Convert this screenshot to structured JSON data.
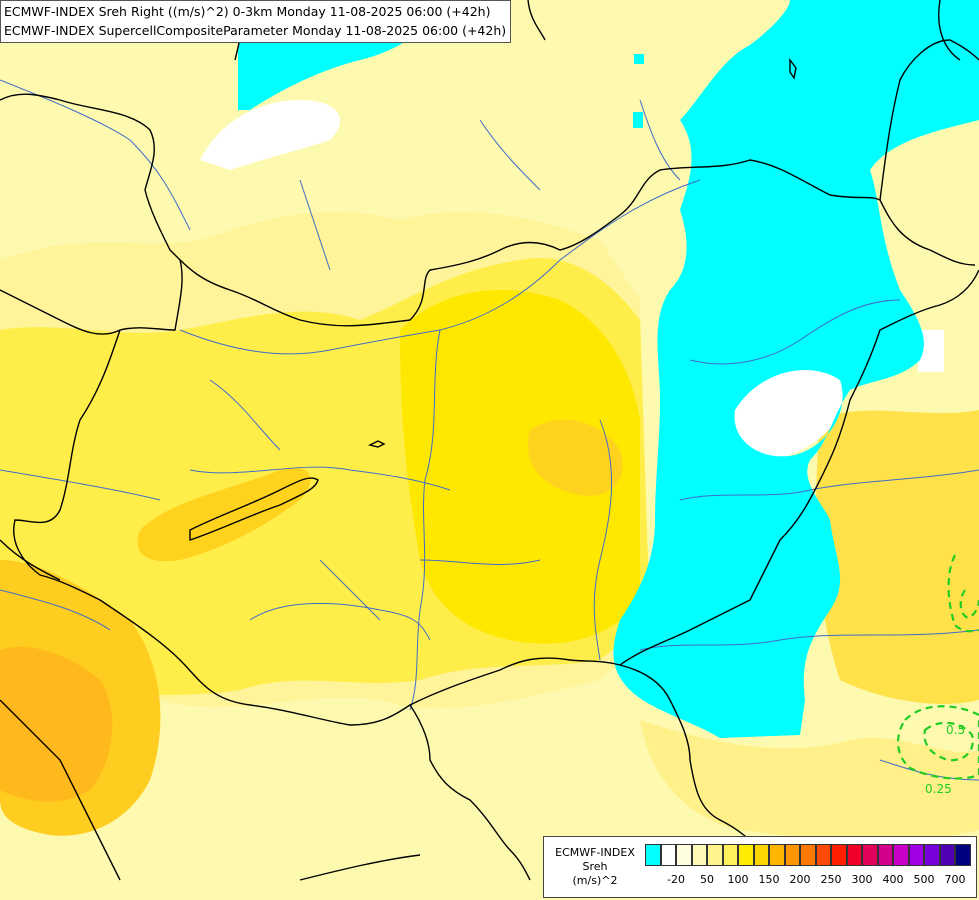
{
  "title": {
    "line1": "ECMWF-INDEX Sreh Right ((m/s)^2) 0-3km Monday 11-08-2025 06:00 (+42h)",
    "line2": "ECMWF-INDEX SupercellCompositeParameter Monday 11-08-2025 06:00 (+42h)"
  },
  "legend": {
    "label_line1": "ECMWF-INDEX",
    "label_line2": "Sreh",
    "label_line3": "(m/s)^2",
    "swatches": [
      {
        "color": "#00ffff"
      },
      {
        "color": "#ffffff"
      },
      {
        "color": "#fffde0"
      },
      {
        "color": "#fff9b8"
      },
      {
        "color": "#fff48c"
      },
      {
        "color": "#ffef5a"
      },
      {
        "color": "#ffec00"
      },
      {
        "color": "#ffd400"
      },
      {
        "color": "#ffb400"
      },
      {
        "color": "#ff9600"
      },
      {
        "color": "#ff7800"
      },
      {
        "color": "#ff4b00"
      },
      {
        "color": "#ff1e00"
      },
      {
        "color": "#f00028"
      },
      {
        "color": "#e1005a"
      },
      {
        "color": "#d2008c"
      },
      {
        "color": "#c800c8"
      },
      {
        "color": "#a000e6"
      },
      {
        "color": "#7800dc"
      },
      {
        "color": "#5000b4"
      },
      {
        "color": "#000080"
      }
    ],
    "ticks": [
      "-20",
      "50",
      "100",
      "150",
      "200",
      "250",
      "300",
      "400",
      "500",
      "700"
    ]
  },
  "contours": {
    "scp_label_1": "0.5",
    "scp_label_2": "0.25"
  },
  "colors": {
    "cyan_region": "#00ffff",
    "pale_yellow": "#fdfab0",
    "light_yellow": "#fff49a",
    "yellow": "#ffee4a",
    "bright_yellow": "#ffe800",
    "orange_yellow": "#ffcc20",
    "border": "#000000",
    "river": "#3f6cc9",
    "scp_contour": "#22cc22"
  }
}
